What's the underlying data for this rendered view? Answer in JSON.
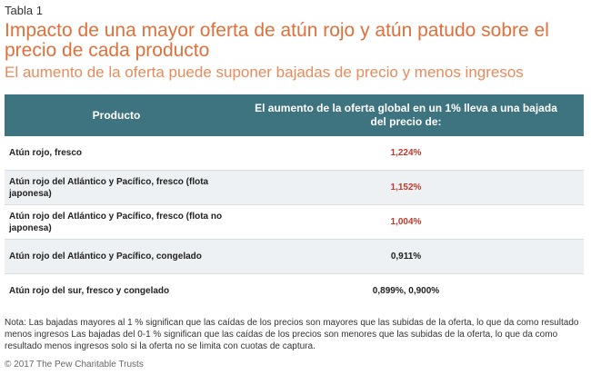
{
  "label": "Tabla 1",
  "title": "Impacto de una mayor oferta de atún rojo y atún patudo sobre el precio de cada producto",
  "subtitle": "El aumento de la oferta puede suponer bajadas de precio y menos ingresos",
  "table": {
    "headers": {
      "product": "Producto",
      "effect": "El aumento de la oferta global en un 1% lleva a una bajada del precio de:"
    },
    "rows": [
      {
        "product": "Atún rojo, fresco",
        "value": "1,224%"
      },
      {
        "product": "Atún rojo del Atlántico y Pacífico, fresco (flota japonesa)",
        "value": "1,152%"
      },
      {
        "product": "Atún rojo del Atlántico y Pacífico, fresco (flota no japonesa)",
        "value": "1,004%"
      },
      {
        "product": "Atún rojo del Atlántico y Pacífico, congelado",
        "value": "0,911%"
      },
      {
        "product": "Atún rojo del sur, fresco y congelado",
        "value": "0,899%, 0,900%"
      }
    ]
  },
  "note": "Nota: Las bajadas mayores al 1 % significan que las caídas de los precios son mayores que las subidas de la oferta, lo que da como resultado menos ingresos Las bajadas del 0-1 % significan que las caídas de los precios son menores que las subidas de la oferta, lo que da como resultado menos ingresos solo si la oferta no se limita con cuotas de captura.",
  "copyright": "© 2017 The Pew Charitable Trusts",
  "colors": {
    "header_bg": "#3e7480",
    "title": "#e0703a",
    "value_red": "#c0392b"
  }
}
